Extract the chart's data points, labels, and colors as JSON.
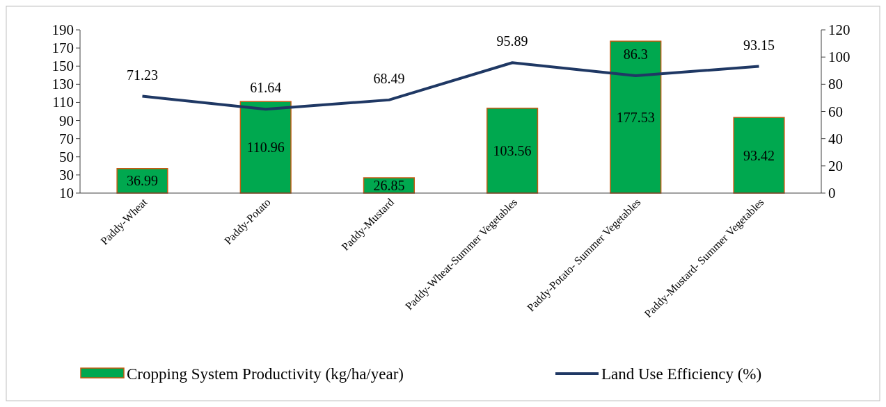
{
  "chart_data": {
    "type": "bar",
    "categories": [
      "Paddy-Wheat",
      "Paddy-Potato",
      "Paddy-Mustard",
      "Paddy-Wheat-Summer Vegetables",
      "Paddy-Potato- Summer Vegetables",
      "Paddy-Mustard- Summer Vegetables"
    ],
    "series": [
      {
        "name": "Cropping System Productivity (kg/ha/year)",
        "color": "#00a84f",
        "values": [
          36.99,
          110.96,
          26.85,
          103.56,
          177.53,
          93.42
        ]
      },
      {
        "name": "Land Use Efficiency (%)",
        "type": "line",
        "axis": "y2",
        "color": "#1f3864",
        "values": [
          71.23,
          61.64,
          68.49,
          95.89,
          86.3,
          93.15
        ]
      }
    ],
    "ylim": [
      10,
      190
    ],
    "yticks": [
      10,
      30,
      50,
      70,
      90,
      110,
      130,
      150,
      170,
      190
    ],
    "y2lim": [
      0,
      120
    ],
    "y2ticks": [
      0,
      20,
      40,
      60,
      80,
      100,
      120
    ],
    "data_labels": true,
    "grid": false,
    "legend": "bottom",
    "marker": "none",
    "line_style": "solid"
  }
}
